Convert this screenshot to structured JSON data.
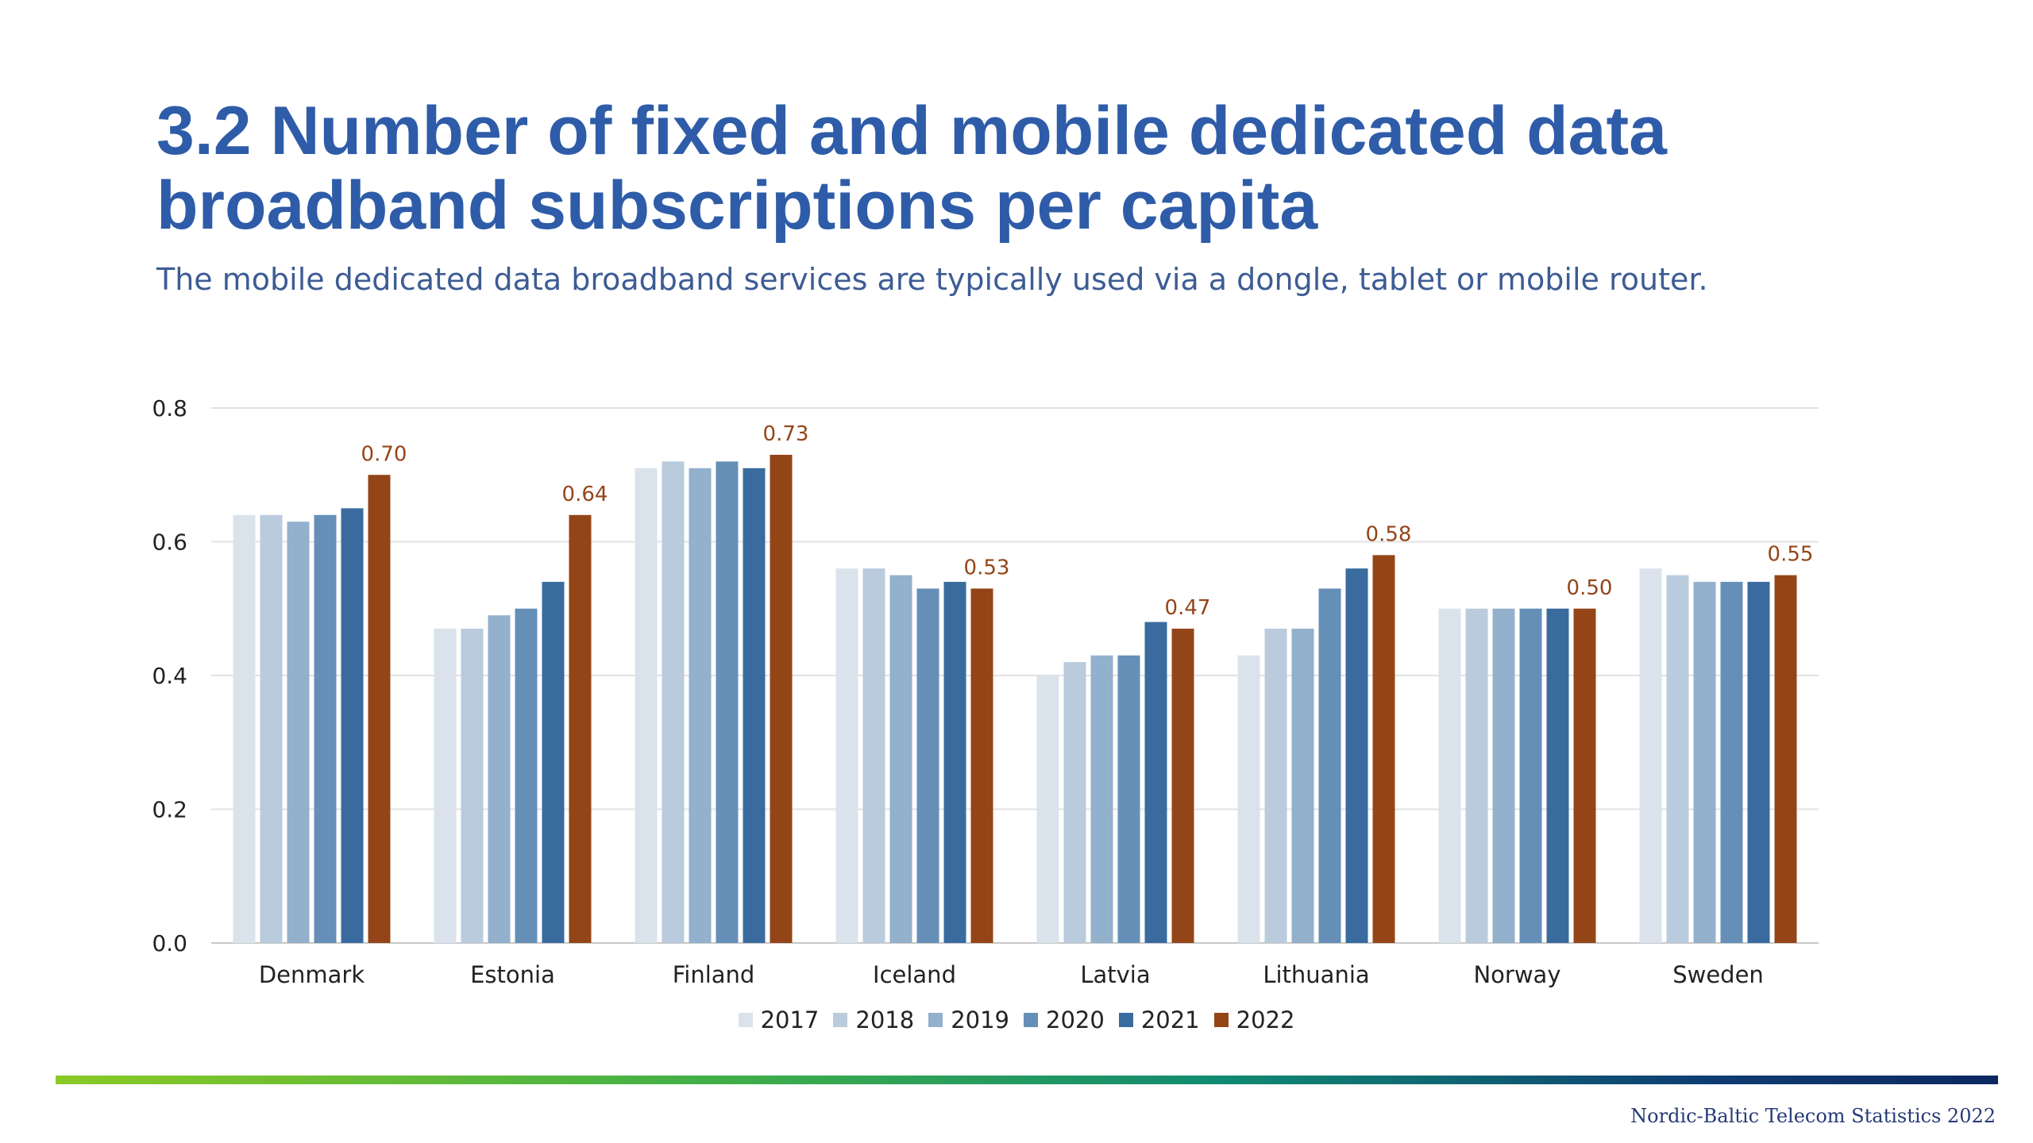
{
  "header": {
    "title": "3.2 Number of fixed and mobile dedicated data broadband subscriptions per capita",
    "subtitle": "The mobile dedicated data broadband services are typically used via a dongle, tablet or mobile router."
  },
  "footer": {
    "text": "Nordic-Baltic Telecom Statistics 2022"
  },
  "chart_data": {
    "type": "bar",
    "categories": [
      "Denmark",
      "Estonia",
      "Finland",
      "Iceland",
      "Latvia",
      "Lithuania",
      "Norway",
      "Sweden"
    ],
    "series": [
      {
        "name": "2017",
        "color": "#dae3ec",
        "values": [
          0.64,
          0.47,
          0.71,
          0.56,
          0.4,
          0.43,
          0.5,
          0.56
        ]
      },
      {
        "name": "2018",
        "color": "#b9cbdd",
        "values": [
          0.64,
          0.47,
          0.72,
          0.56,
          0.42,
          0.47,
          0.5,
          0.55
        ]
      },
      {
        "name": "2019",
        "color": "#93b0cc",
        "values": [
          0.63,
          0.49,
          0.71,
          0.55,
          0.43,
          0.47,
          0.5,
          0.54
        ]
      },
      {
        "name": "2020",
        "color": "#668fb8",
        "values": [
          0.64,
          0.5,
          0.72,
          0.53,
          0.43,
          0.53,
          0.5,
          0.54
        ]
      },
      {
        "name": "2021",
        "color": "#3a6b9f",
        "values": [
          0.65,
          0.54,
          0.71,
          0.54,
          0.48,
          0.56,
          0.5,
          0.54
        ]
      },
      {
        "name": "2022",
        "color": "#944518",
        "values": [
          0.7,
          0.64,
          0.73,
          0.53,
          0.47,
          0.58,
          0.5,
          0.55
        ]
      }
    ],
    "data_labels": {
      "series": "2022",
      "labels": [
        "0.70",
        "0.64",
        "0.73",
        "0.53",
        "0.47",
        "0.58",
        "0.50",
        "0.55"
      ],
      "color": "#944518"
    },
    "y_ticks": [
      "0.0",
      "0.2",
      "0.4",
      "0.6",
      "0.8"
    ],
    "ylim": [
      0,
      0.8
    ],
    "grid": true,
    "legend_position": "bottom-center"
  }
}
